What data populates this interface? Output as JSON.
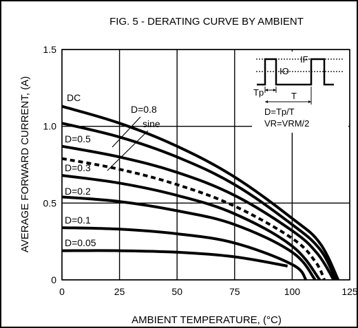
{
  "chart_data": {
    "type": "line",
    "title": "FIG. 5 - DERATING CURVE BY AMBIENT",
    "xlabel": "AMBIENT TEMPERATURE, (°C)",
    "ylabel": "AVERAGE FORWARD CURRENT, (A)",
    "xlim": [
      0,
      125
    ],
    "ylim": [
      0,
      1.5
    ],
    "x_ticks": [
      "0",
      "25",
      "50",
      "75",
      "100",
      "125"
    ],
    "y_ticks": [
      "0",
      "0.5",
      "1.0",
      "1.5"
    ],
    "grid": true,
    "series": [
      {
        "name": "DC",
        "style": "solid",
        "points": [
          [
            0,
            1.13
          ],
          [
            25,
            1.02
          ],
          [
            50,
            0.87
          ],
          [
            75,
            0.67
          ],
          [
            100,
            0.4
          ],
          [
            112,
            0.24
          ],
          [
            120,
            0.0
          ]
        ]
      },
      {
        "name": "D=0.8",
        "style": "solid",
        "points": [
          [
            0,
            1.02
          ],
          [
            25,
            0.93
          ],
          [
            50,
            0.8
          ],
          [
            75,
            0.62
          ],
          [
            100,
            0.36
          ],
          [
            112,
            0.2
          ],
          [
            119,
            0.0
          ]
        ]
      },
      {
        "name": "D=0.5",
        "style": "solid",
        "points": [
          [
            0,
            0.87
          ],
          [
            25,
            0.8
          ],
          [
            50,
            0.7
          ],
          [
            75,
            0.55
          ],
          [
            100,
            0.32
          ],
          [
            111,
            0.17
          ],
          [
            118,
            0.0
          ]
        ]
      },
      {
        "name": "sine",
        "style": "dashed",
        "points": [
          [
            0,
            0.79
          ],
          [
            25,
            0.72
          ],
          [
            50,
            0.62
          ],
          [
            75,
            0.48
          ],
          [
            100,
            0.27
          ],
          [
            110,
            0.12
          ],
          [
            114,
            0.0
          ]
        ]
      },
      {
        "name": "D=0.3",
        "style": "solid",
        "points": [
          [
            0,
            0.68
          ],
          [
            25,
            0.63
          ],
          [
            50,
            0.55
          ],
          [
            75,
            0.43
          ],
          [
            100,
            0.22
          ],
          [
            112,
            0.0
          ]
        ]
      },
      {
        "name": "D=0.2",
        "style": "solid",
        "points": [
          [
            0,
            0.54
          ],
          [
            25,
            0.51
          ],
          [
            50,
            0.45
          ],
          [
            75,
            0.36
          ],
          [
            100,
            0.18
          ],
          [
            110,
            0.0
          ]
        ]
      },
      {
        "name": "D=0.1",
        "style": "solid",
        "points": [
          [
            0,
            0.34
          ],
          [
            25,
            0.33
          ],
          [
            50,
            0.3
          ],
          [
            75,
            0.24
          ],
          [
            100,
            0.1
          ],
          [
            106,
            0.0
          ]
        ]
      },
      {
        "name": "D=0.05",
        "style": "solid",
        "points": [
          [
            0,
            0.19
          ],
          [
            25,
            0.19
          ],
          [
            50,
            0.18
          ],
          [
            75,
            0.15
          ],
          [
            98,
            0.09
          ]
        ]
      }
    ],
    "curve_labels": [
      "DC",
      "D=0.8",
      "D=0.5",
      "sine",
      "D=0.3",
      "D=0.2",
      "D=0.1",
      "D=0.05"
    ],
    "inset": {
      "if_label": "IF",
      "io_label": "IO",
      "tp_label": "Tp",
      "t_label": "T",
      "duty_formula": "D=Tp/T",
      "vr_formula": "VR=VRM/2"
    }
  }
}
